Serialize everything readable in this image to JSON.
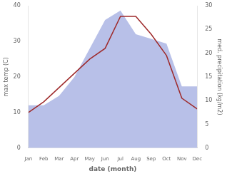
{
  "chart_data": {
    "type": "line",
    "categories": [
      "Jan",
      "Feb",
      "Mar",
      "Apr",
      "May",
      "Jun",
      "Jul",
      "Aug",
      "Sep",
      "Oct",
      "Nov",
      "Dec"
    ],
    "series": [
      {
        "type": "area",
        "color": "#b8c0e8",
        "axis": "y2",
        "values": [
          9,
          9,
          11,
          15,
          21,
          27,
          29,
          24,
          23,
          22,
          13,
          13
        ]
      },
      {
        "type": "line",
        "color": "#9e2a2b",
        "axis": "y",
        "values": [
          10,
          13,
          17,
          21,
          25,
          28,
          37,
          37,
          32,
          26,
          14,
          11
        ]
      }
    ],
    "xlabel": "date (month)",
    "ylabel": "max temp (C)",
    "y2label": "med. precipitation (kg/m2)",
    "ylim": [
      0,
      40
    ],
    "yticks": [
      0,
      10,
      20,
      30,
      40
    ],
    "y2lim": [
      0,
      30
    ],
    "y2ticks": [
      0,
      5,
      10,
      15,
      20,
      25,
      30
    ],
    "grid": false
  }
}
